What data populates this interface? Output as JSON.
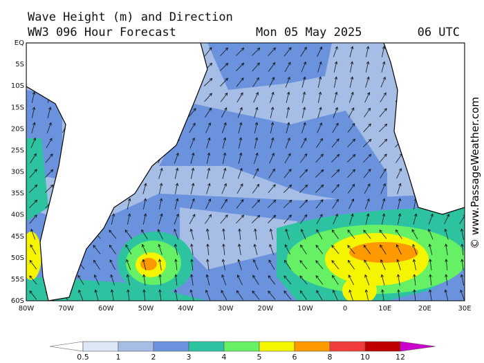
{
  "header": {
    "title": "Wave Height (m) and Direction",
    "subtitle": "WW3 096 Hour Forecast",
    "date": "Mon 05 May 2025",
    "time": "06 UTC"
  },
  "map": {
    "lat_labels": [
      "EQ",
      "5S",
      "10S",
      "15S",
      "20S",
      "25S",
      "30S",
      "35S",
      "40S",
      "45S",
      "50S",
      "55S",
      "60S"
    ],
    "lon_labels": [
      "80W",
      "70W",
      "60W",
      "50W",
      "40W",
      "30W",
      "20W",
      "10W",
      "0",
      "10E",
      "20E",
      "30E"
    ]
  },
  "legend": {
    "colors": [
      "#ffffff",
      "#dde6f5",
      "#a6bde6",
      "#6a92dd",
      "#2ec3a0",
      "#66f066",
      "#f5f500",
      "#ff9900",
      "#f03c3c",
      "#c00000",
      "#cc00cc"
    ],
    "labels": [
      0.5,
      1,
      2,
      3,
      4,
      5,
      6,
      8,
      10,
      12
    ]
  },
  "credit": "© www.PassageWeather.com"
}
